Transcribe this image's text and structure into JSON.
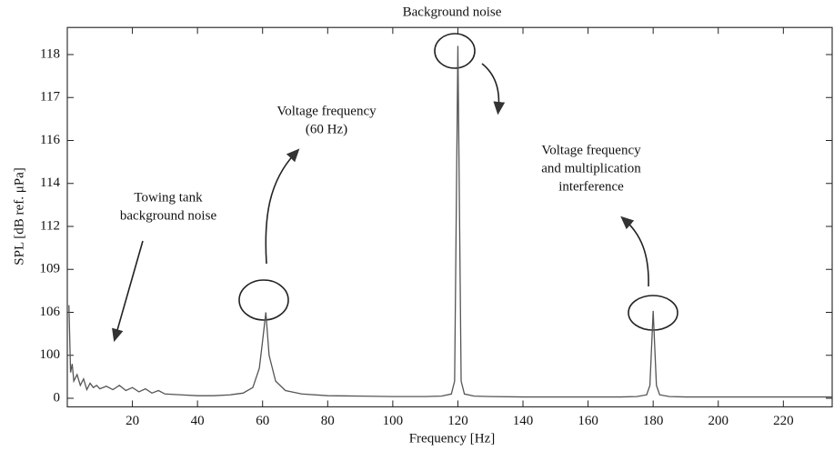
{
  "chart_data": {
    "type": "line",
    "title": "Background noise",
    "x_label": "Frequency [Hz]",
    "y_label": "SPL [dB ref. μPa]",
    "xlim": [
      0,
      235
    ],
    "xticks": [
      20,
      40,
      60,
      80,
      100,
      120,
      140,
      160,
      180,
      200,
      220
    ],
    "ylim": [
      -20,
      118.63
    ],
    "yticks": [
      0,
      100,
      106,
      109,
      112,
      114,
      116,
      117,
      118
    ],
    "grid": false,
    "series": [
      {
        "color": "#555555",
        "x": [
          0.5,
          1,
          1.5,
          2,
          3,
          4,
          5,
          6,
          7,
          8,
          9,
          10,
          12,
          14,
          16,
          18,
          20,
          22,
          24,
          26,
          28,
          30,
          35,
          40,
          45,
          50,
          54,
          57,
          59,
          60,
          61,
          62,
          64,
          67,
          72,
          80,
          90,
          100,
          110,
          115,
          118,
          119,
          120,
          121,
          122,
          125,
          130,
          140,
          150,
          160,
          170,
          175,
          178,
          179,
          180,
          181,
          182,
          185,
          190,
          200,
          210,
          220,
          230,
          235
        ],
        "values": [
          106.5,
          60,
          80,
          40,
          55,
          30,
          45,
          20,
          35,
          25,
          30,
          22,
          28,
          20,
          30,
          18,
          25,
          15,
          22,
          12,
          18,
          10,
          8,
          6,
          6,
          8,
          12,
          25,
          70,
          102,
          106,
          100,
          40,
          18,
          10,
          6,
          5,
          4,
          4,
          5,
          10,
          40,
          118.2,
          40,
          10,
          5,
          4,
          3,
          3,
          3,
          3,
          4,
          8,
          30,
          106.1,
          30,
          8,
          4,
          3,
          3,
          3,
          3,
          3,
          3
        ]
      }
    ],
    "annotations": [
      {
        "lines": [
          "Towing tank",
          "background noise"
        ]
      },
      {
        "lines": [
          "Voltage frequency",
          "(60 Hz)"
        ]
      },
      {
        "lines": [
          "Voltage frequency",
          "and multiplication",
          "interference"
        ]
      }
    ]
  }
}
